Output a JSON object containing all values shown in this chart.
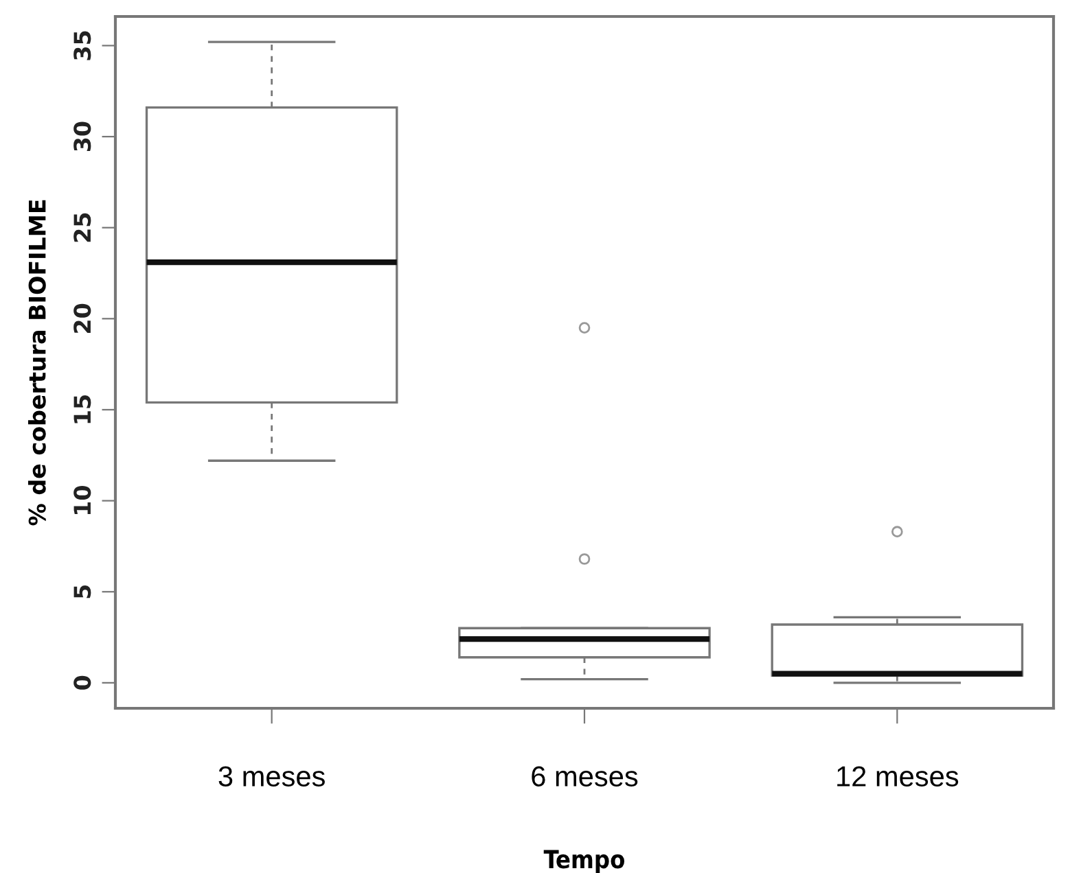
{
  "chart_data": {
    "type": "box",
    "xlabel": "Tempo",
    "ylabel": "% de cobertura BIOFILME",
    "categories": [
      "3 meses",
      "6 meses",
      "12 meses"
    ],
    "boxes": [
      {
        "low": 12.2,
        "q1": 15.4,
        "median": 23.1,
        "q3": 31.6,
        "high": 35.2
      },
      {
        "low": 0.2,
        "q1": 1.4,
        "median": 2.4,
        "q3": 3.0,
        "high": 3.0,
        "outliers": [
          19.5,
          6.8
        ]
      },
      {
        "low": 0.0,
        "q1": 0.4,
        "median": 0.5,
        "q3": 3.2,
        "high": 3.6,
        "outliers": [
          8.3
        ]
      }
    ],
    "color": "#ffffff",
    "ylim": [
      -1.4,
      36.6
    ],
    "yticks": [
      0,
      5,
      10,
      15,
      20,
      25,
      30,
      35
    ],
    "grid": false
  }
}
